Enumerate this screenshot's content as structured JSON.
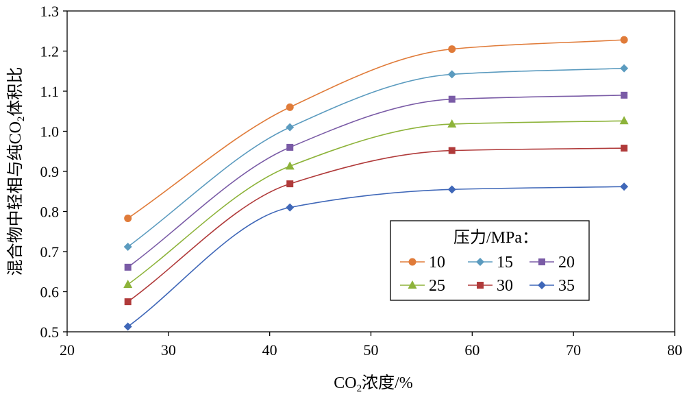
{
  "chart_data": {
    "type": "line",
    "xlabel": "CO2浓度/%",
    "xlabel_main": "CO",
    "xlabel_sub": "2",
    "xlabel_rest": "浓度/%",
    "ylabel_pre": "混合物中轻相与纯CO",
    "ylabel_sub": "2",
    "ylabel_post": "体积比",
    "xlim": [
      20,
      80
    ],
    "ylim": [
      0.5,
      1.3
    ],
    "x_ticks": [
      "20",
      "30",
      "40",
      "50",
      "60",
      "70",
      "80"
    ],
    "y_ticks": [
      "0.5",
      "0.6",
      "0.7",
      "0.8",
      "0.9",
      "1.0",
      "1.1",
      "1.2",
      "1.3"
    ],
    "legend_title": "压力/MPa：",
    "legend_position": "bottom-right",
    "grid": false,
    "x": [
      26,
      42,
      58,
      75
    ],
    "series": [
      {
        "name": "10",
        "values": [
          0.783,
          1.06,
          1.205,
          1.228
        ],
        "color": "#E07B39",
        "marker": "circle"
      },
      {
        "name": "15",
        "values": [
          0.712,
          1.01,
          1.142,
          1.157
        ],
        "color": "#5B9BBF",
        "marker": "diamond"
      },
      {
        "name": "20",
        "values": [
          0.661,
          0.96,
          1.08,
          1.09
        ],
        "color": "#7A5BA6",
        "marker": "square"
      },
      {
        "name": "25",
        "values": [
          0.618,
          0.913,
          1.018,
          1.026
        ],
        "color": "#8DB33A",
        "marker": "triangle"
      },
      {
        "name": "30",
        "values": [
          0.575,
          0.869,
          0.952,
          0.958
        ],
        "color": "#B03A3A",
        "marker": "square"
      },
      {
        "name": "35",
        "values": [
          0.513,
          0.81,
          0.855,
          0.862
        ],
        "color": "#3F67B8",
        "marker": "diamond"
      }
    ]
  }
}
